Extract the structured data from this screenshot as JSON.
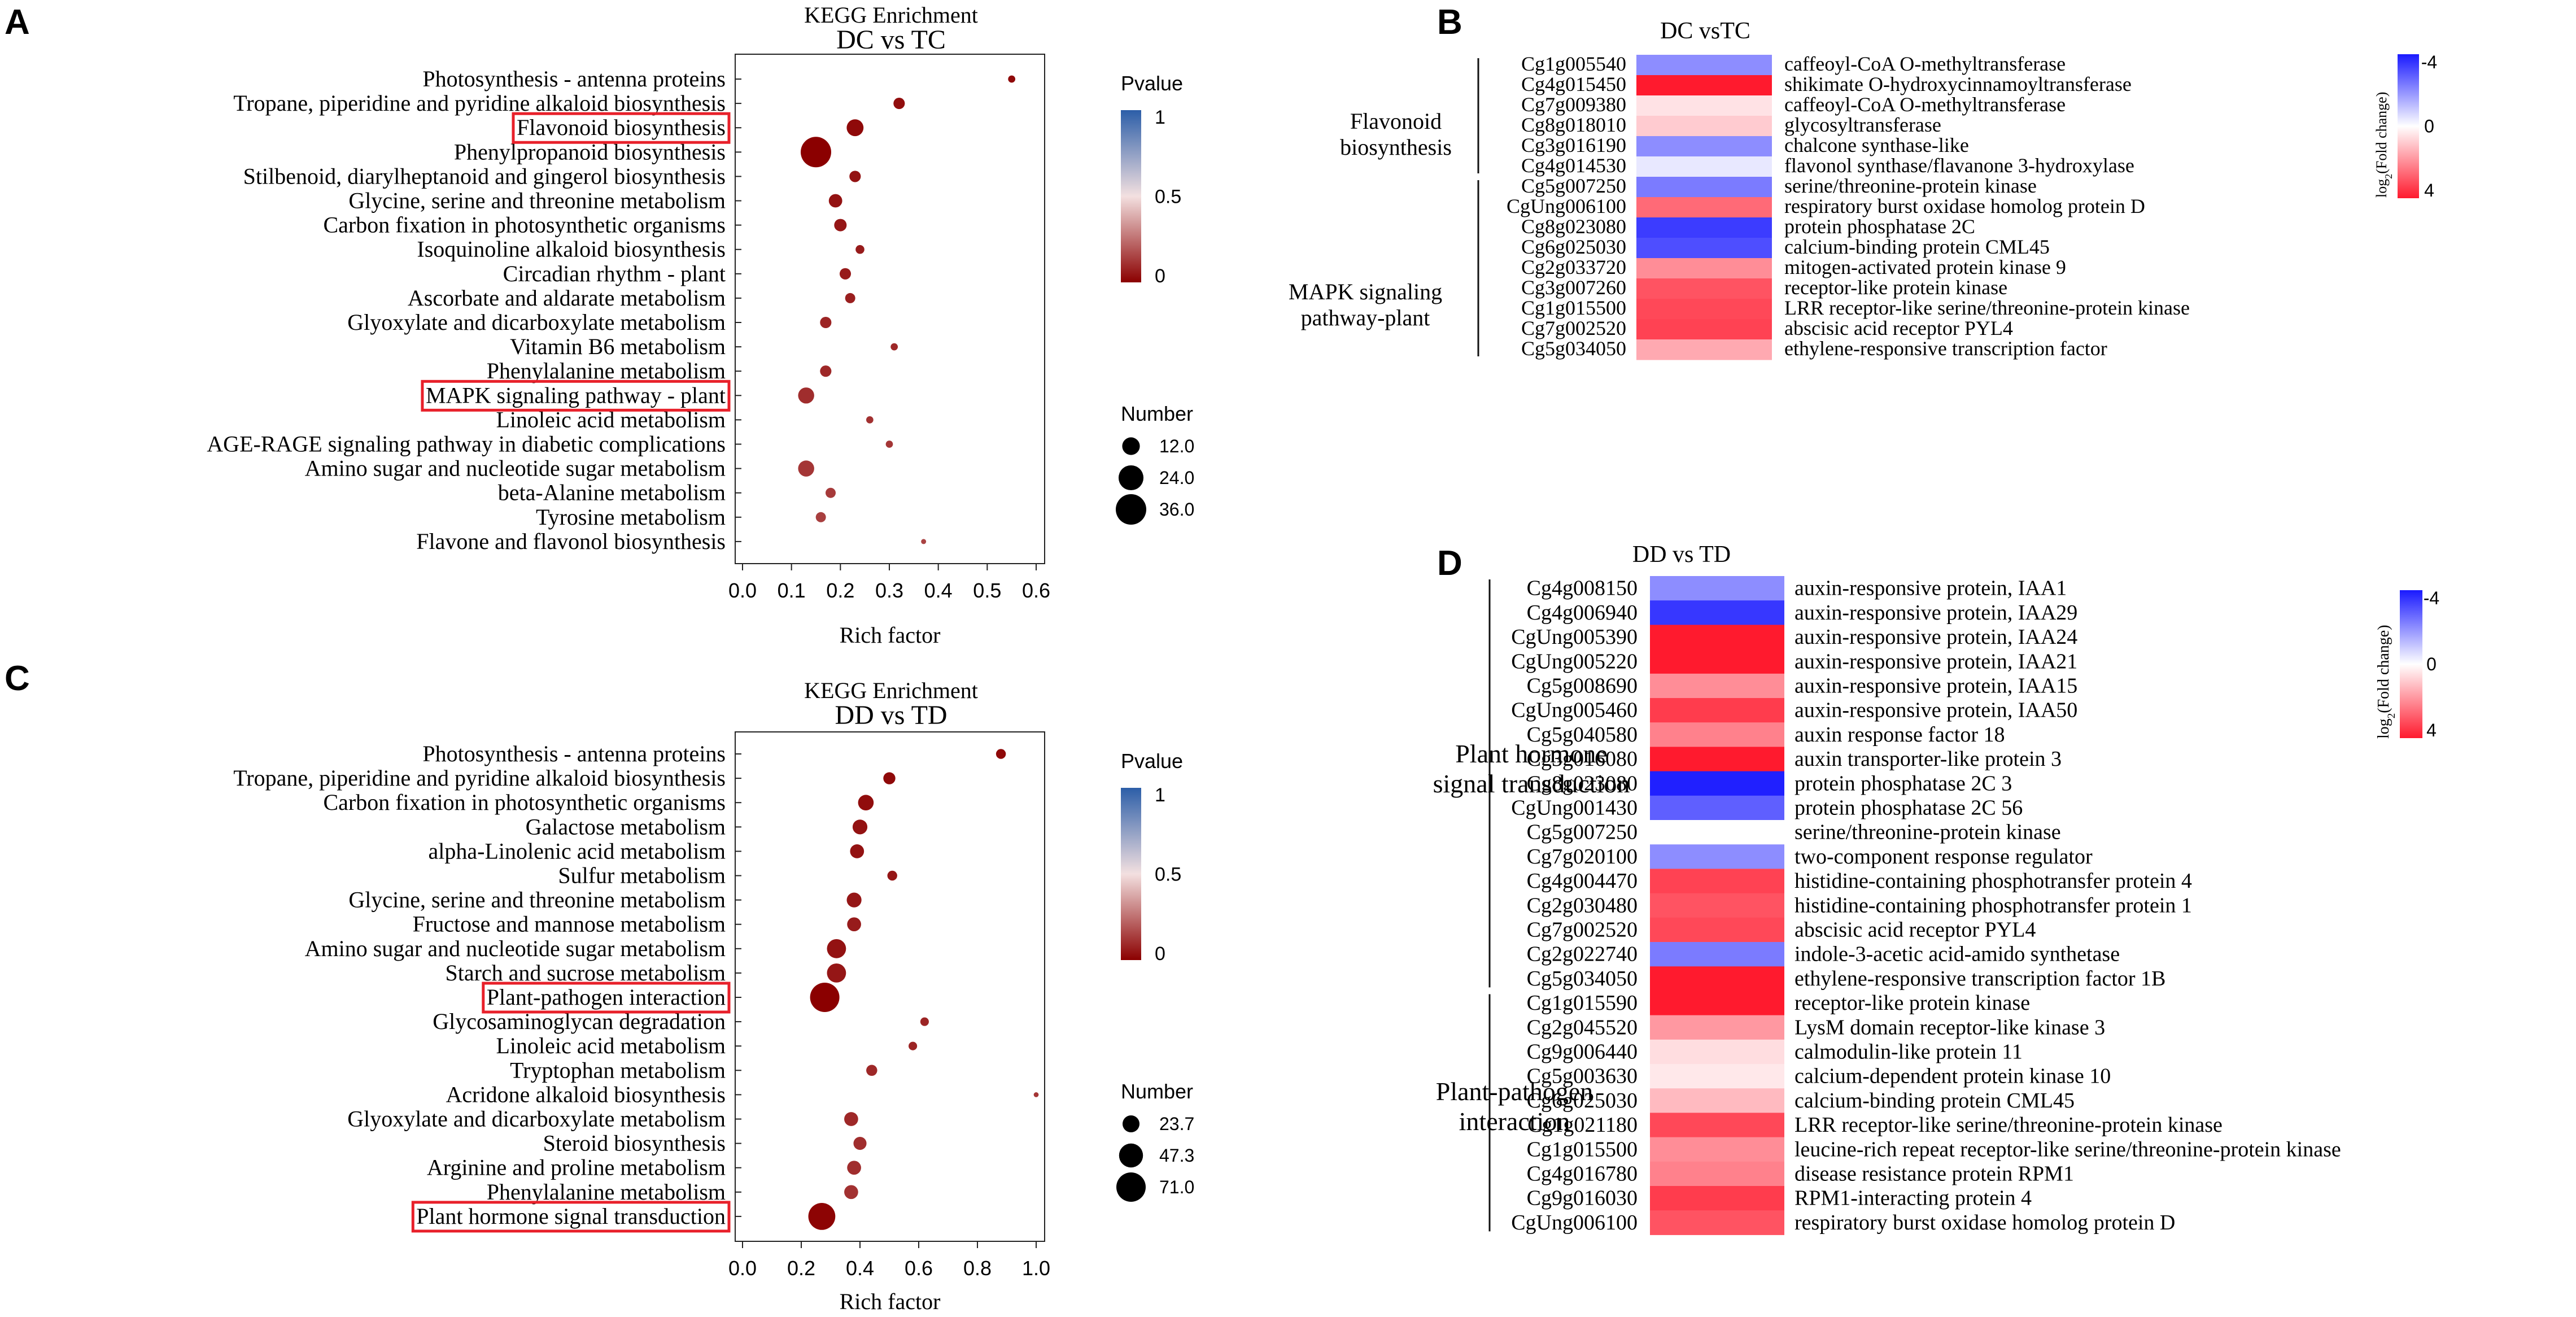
{
  "chart_data": [
    {
      "panel": "A",
      "type": "scatter",
      "title": "KEGG Enrichment",
      "subtitle": "DC vs TC",
      "xlabel": "Rich factor",
      "ylabel": "",
      "xlim": [
        0,
        0.6
      ],
      "x_ticks": [
        "0.0",
        "0.1",
        "0.2",
        "0.3",
        "0.4",
        "0.5",
        "0.6"
      ],
      "highlighted": [
        "Flavonoid biosynthesis",
        "MAPK signaling pathway - plant"
      ],
      "pvalue_legend": {
        "title": "Pvalue",
        "ticks": [
          "1",
          "0.5",
          "0"
        ],
        "range": [
          0,
          1
        ]
      },
      "number_legend": {
        "title": "Number",
        "labels": [
          "12.0",
          "24.0",
          "36.0"
        ],
        "values": [
          12,
          24,
          36
        ]
      },
      "points": [
        {
          "term": "Photosynthesis - antenna proteins",
          "x": 0.55,
          "count": 2,
          "pvalue": 0.02
        },
        {
          "term": "Tropane, piperidine and pyridine alkaloid biosynthesis",
          "x": 0.32,
          "count": 5,
          "pvalue": 0.03
        },
        {
          "term": "Flavonoid biosynthesis",
          "x": 0.23,
          "count": 11,
          "pvalue": 0.02
        },
        {
          "term": "Phenylpropanoid biosynthesis",
          "x": 0.15,
          "count": 36,
          "pvalue": 0.0
        },
        {
          "term": "Stilbenoid, diarylheptanoid and gingerol biosynthesis",
          "x": 0.23,
          "count": 5,
          "pvalue": 0.04
        },
        {
          "term": "Glycine, serine and threonine metabolism",
          "x": 0.19,
          "count": 7,
          "pvalue": 0.04
        },
        {
          "term": "Carbon fixation in photosynthetic organisms",
          "x": 0.2,
          "count": 6,
          "pvalue": 0.05
        },
        {
          "term": "Isoquinoline alkaloid biosynthesis",
          "x": 0.24,
          "count": 3,
          "pvalue": 0.06
        },
        {
          "term": "Circadian rhythm - plant",
          "x": 0.21,
          "count": 5,
          "pvalue": 0.06
        },
        {
          "term": "Ascorbate and aldarate metabolism",
          "x": 0.22,
          "count": 4,
          "pvalue": 0.07
        },
        {
          "term": "Glyoxylate and dicarboxylate metabolism",
          "x": 0.17,
          "count": 5,
          "pvalue": 0.08
        },
        {
          "term": "Vitamin B6 metabolism",
          "x": 0.31,
          "count": 2,
          "pvalue": 0.09
        },
        {
          "term": "Phenylalanine metabolism",
          "x": 0.17,
          "count": 5,
          "pvalue": 0.09
        },
        {
          "term": "MAPK signaling pathway - plant",
          "x": 0.13,
          "count": 10,
          "pvalue": 0.1
        },
        {
          "term": "Linoleic acid metabolism",
          "x": 0.26,
          "count": 2,
          "pvalue": 0.11
        },
        {
          "term": "AGE-RAGE signaling pathway in diabetic complications",
          "x": 0.3,
          "count": 2,
          "pvalue": 0.12
        },
        {
          "term": "Amino sugar and nucleotide sugar metabolism",
          "x": 0.13,
          "count": 10,
          "pvalue": 0.12
        },
        {
          "term": "beta-Alanine metabolism",
          "x": 0.18,
          "count": 4,
          "pvalue": 0.13
        },
        {
          "term": "Tyrosine metabolism",
          "x": 0.16,
          "count": 4,
          "pvalue": 0.14
        },
        {
          "term": "Flavone and flavonol biosynthesis",
          "x": 0.37,
          "count": 1,
          "pvalue": 0.15
        }
      ]
    },
    {
      "panel": "B",
      "type": "heatmap",
      "title": "DC vsTC",
      "legend_label": "log2(Fold change)",
      "legend_ticks": [
        "-4",
        "0",
        "4"
      ],
      "range": [
        -4,
        4
      ],
      "groups": [
        {
          "name": "Flavonoid biosynthesis",
          "rows": 6
        },
        {
          "name": "MAPK signaling pathway-plant",
          "rows": 9
        }
      ],
      "rows": [
        {
          "id": "Cg1g005540",
          "desc": "caffeoyl-CoA O-methyltransferase",
          "value": -2.0
        },
        {
          "id": "Cg4g015450",
          "desc": "shikimate O-hydroxycinnamoyltransferase",
          "value": 4.0
        },
        {
          "id": "Cg7g009380",
          "desc": "caffeoyl-CoA O-methyltransferase",
          "value": 0.5
        },
        {
          "id": "Cg8g018010",
          "desc": "glycosyltransferase",
          "value": 0.9
        },
        {
          "id": "Cg3g016190",
          "desc": "chalcone synthase-like",
          "value": -2.0
        },
        {
          "id": "Cg4g014530",
          "desc": "flavonol synthase/flavanone 3-hydroxylase",
          "value": -0.4
        },
        {
          "id": "Cg5g007250",
          "desc": "serine/threonine-protein kinase",
          "value": -2.3
        },
        {
          "id": "CgUng006100",
          "desc": "respiratory burst oxidase homolog protein D",
          "value": 2.6
        },
        {
          "id": "Cg8g023080",
          "desc": "protein phosphatase 2C",
          "value": -3.4
        },
        {
          "id": "Cg6g025030",
          "desc": "calcium-binding protein CML45",
          "value": -3.1
        },
        {
          "id": "Cg2g033720",
          "desc": "mitogen-activated protein kinase 9",
          "value": 2.0
        },
        {
          "id": "Cg3g007260",
          "desc": "receptor-like protein kinase",
          "value": 3.0
        },
        {
          "id": "Cg1g015500",
          "desc": "LRR receptor-like serine/threonine-protein kinase",
          "value": 3.2
        },
        {
          "id": "Cg7g002520",
          "desc": "abscisic acid receptor PYL4",
          "value": 3.3
        },
        {
          "id": "Cg5g034050",
          "desc": "ethylene-responsive transcription factor",
          "value": 1.5
        }
      ]
    },
    {
      "panel": "C",
      "type": "scatter",
      "title": "KEGG Enrichment",
      "subtitle": "DD vs TD",
      "xlabel": "Rich factor",
      "ylabel": "",
      "xlim": [
        0,
        1.0
      ],
      "x_ticks": [
        "0.0",
        "0.2",
        "0.4",
        "0.6",
        "0.8",
        "1.0"
      ],
      "highlighted": [
        "Plant-pathogen interaction",
        "Plant hormone signal transduction"
      ],
      "pvalue_legend": {
        "title": "Pvalue",
        "ticks": [
          "1",
          "0.5",
          "0"
        ],
        "range": [
          0,
          1
        ]
      },
      "number_legend": {
        "title": "Number",
        "labels": [
          "23.7",
          "47.3",
          "71.0"
        ],
        "values": [
          23.7,
          47.3,
          71.0
        ]
      },
      "points": [
        {
          "term": "Photosynthesis - antenna proteins",
          "x": 0.88,
          "count": 8,
          "pvalue": 0.02
        },
        {
          "term": "Tropane, piperidine and pyridine alkaloid biosynthesis",
          "x": 0.5,
          "count": 12,
          "pvalue": 0.02
        },
        {
          "term": "Carbon fixation in photosynthetic organisms",
          "x": 0.42,
          "count": 20,
          "pvalue": 0.03
        },
        {
          "term": "Galactose metabolism",
          "x": 0.4,
          "count": 18,
          "pvalue": 0.04
        },
        {
          "term": "alpha-Linolenic acid metabolism",
          "x": 0.39,
          "count": 16,
          "pvalue": 0.04
        },
        {
          "term": "Sulfur metabolism",
          "x": 0.51,
          "count": 8,
          "pvalue": 0.05
        },
        {
          "term": "Glycine, serine and threonine metabolism",
          "x": 0.38,
          "count": 18,
          "pvalue": 0.05
        },
        {
          "term": "Fructose and mannose metabolism",
          "x": 0.38,
          "count": 16,
          "pvalue": 0.06
        },
        {
          "term": "Amino sugar and nucleotide sugar metabolism",
          "x": 0.32,
          "count": 30,
          "pvalue": 0.04
        },
        {
          "term": "Starch and sucrose metabolism",
          "x": 0.32,
          "count": 30,
          "pvalue": 0.05
        },
        {
          "term": "Plant-pathogen interaction",
          "x": 0.28,
          "count": 71,
          "pvalue": 0.0
        },
        {
          "term": "Glycosaminoglycan degradation",
          "x": 0.62,
          "count": 6,
          "pvalue": 0.08
        },
        {
          "term": "Linoleic acid metabolism",
          "x": 0.58,
          "count": 6,
          "pvalue": 0.08
        },
        {
          "term": "Tryptophan metabolism",
          "x": 0.44,
          "count": 10,
          "pvalue": 0.09
        },
        {
          "term": "Acridone alkaloid biosynthesis",
          "x": 1.0,
          "count": 2,
          "pvalue": 0.12
        },
        {
          "term": "Glyoxylate and dicarboxylate metabolism",
          "x": 0.37,
          "count": 16,
          "pvalue": 0.09
        },
        {
          "term": "Steroid biosynthesis",
          "x": 0.4,
          "count": 14,
          "pvalue": 0.1
        },
        {
          "term": "Arginine and proline metabolism",
          "x": 0.38,
          "count": 16,
          "pvalue": 0.1
        },
        {
          "term": "Phenylalanine metabolism",
          "x": 0.37,
          "count": 16,
          "pvalue": 0.11
        },
        {
          "term": "Plant hormone signal transduction",
          "x": 0.27,
          "count": 60,
          "pvalue": 0.01
        }
      ]
    },
    {
      "panel": "D",
      "type": "heatmap",
      "title": "DD vs TD",
      "legend_label": "log2(Fold change)",
      "legend_ticks": [
        "-4",
        "0",
        "4"
      ],
      "range": [
        -4,
        4
      ],
      "groups": [
        {
          "name": "Plant hormone signal transduction",
          "rows": 17
        },
        {
          "name": "Plant-pathogen interaction",
          "rows": 10
        }
      ],
      "rows": [
        {
          "id": "Cg4g008150",
          "desc": "auxin-responsive protein, IAA1",
          "value": -2.0
        },
        {
          "id": "Cg4g006940",
          "desc": "auxin-responsive protein, IAA29",
          "value": -3.5
        },
        {
          "id": "CgUng005390",
          "desc": "auxin-responsive protein, IAA24",
          "value": 4.0
        },
        {
          "id": "CgUng005220",
          "desc": "auxin-responsive protein, IAA21",
          "value": 4.0
        },
        {
          "id": "Cg5g008690",
          "desc": "auxin-responsive protein, IAA15",
          "value": 2.0
        },
        {
          "id": "CgUng005460",
          "desc": "auxin-responsive protein, IAA50",
          "value": 3.4
        },
        {
          "id": "Cg5g040580",
          "desc": "auxin response factor 18",
          "value": 2.2
        },
        {
          "id": "Cg3g016080",
          "desc": "auxin transporter-like protein 3",
          "value": 4.0
        },
        {
          "id": "Cg8g023080",
          "desc": "protein phosphatase 2C 3",
          "value": -3.9
        },
        {
          "id": "CgUng001430",
          "desc": "protein phosphatase 2C 56",
          "value": -2.8
        },
        {
          "id": "Cg5g007250",
          "desc": "serine/threonine-protein kinase",
          "value": 0.0
        },
        {
          "id": "Cg7g020100",
          "desc": "two-component response regulator",
          "value": -2.0
        },
        {
          "id": "Cg4g004470",
          "desc": "histidine-containing phosphotransfer protein 4",
          "value": 3.3
        },
        {
          "id": "Cg2g030480",
          "desc": "histidine-containing phosphotransfer protein 1",
          "value": 3.0
        },
        {
          "id": "Cg7g002520",
          "desc": "abscisic acid receptor PYL4",
          "value": 3.2
        },
        {
          "id": "Cg2g022740",
          "desc": "indole-3-acetic acid-amido synthetase",
          "value": -2.3
        },
        {
          "id": "Cg5g034050",
          "desc": "ethylene-responsive transcription factor 1B",
          "value": 4.0
        },
        {
          "id": "Cg1g015590",
          "desc": "receptor-like protein kinase",
          "value": 4.0
        },
        {
          "id": "Cg2g045520",
          "desc": "LysM domain receptor-like kinase 3",
          "value": 1.8
        },
        {
          "id": "Cg9g006440",
          "desc": "calmodulin-like protein 11",
          "value": 0.6
        },
        {
          "id": "Cg5g003630",
          "desc": "calcium-dependent protein kinase 10",
          "value": 0.4
        },
        {
          "id": "Cg6g025030",
          "desc": "calcium-binding protein CML45",
          "value": 1.2
        },
        {
          "id": "Cg1g021180",
          "desc": "LRR receptor-like serine/threonine-protein kinase",
          "value": 3.2
        },
        {
          "id": "Cg1g015500",
          "desc": "leucine-rich repeat receptor-like serine/threonine-protein kinase",
          "value": 2.0
        },
        {
          "id": "Cg4g016780",
          "desc": "disease resistance protein RPM1",
          "value": 2.2
        },
        {
          "id": "Cg9g016030",
          "desc": "RPM1-interacting protein 4",
          "value": 3.4
        },
        {
          "id": "CgUng006100",
          "desc": "respiratory burst oxidase homolog protein D",
          "value": 3.0
        }
      ]
    }
  ],
  "labels": {
    "panel_a": "A",
    "panel_b": "B",
    "panel_c": "C",
    "panel_d": "D",
    "log2_prefix": "log",
    "log2_sub": "2",
    "log2_suffix": "(Fold change)"
  },
  "colors": {
    "dot_low": "#8b0000",
    "dot_mid": "#f3e0e0",
    "dot_high": "#2c5ea8",
    "heat_neg": "#1a1aff",
    "heat_zero": "#ffffff",
    "heat_pos": "#ff1a2e",
    "highlight_box": "#e8202a"
  }
}
